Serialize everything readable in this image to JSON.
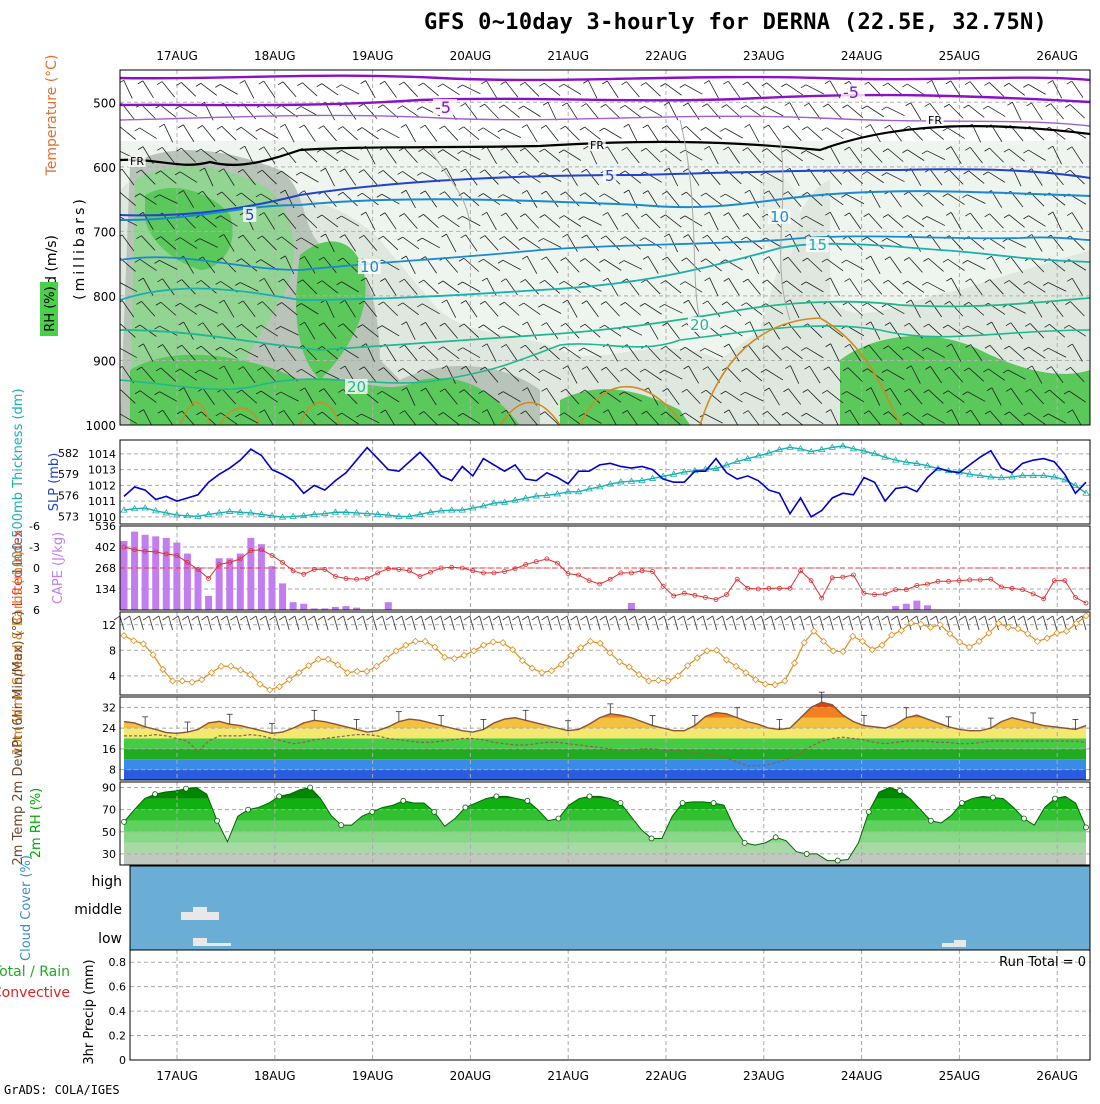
{
  "title": "GFS 0~10day 3-hourly for DERNA (22.5E, 32.75N)",
  "credit": "GrADS: COLA/IGES",
  "dates": [
    "17AUG",
    "18AUG",
    "19AUG",
    "20AUG",
    "21AUG",
    "22AUG",
    "23AUG",
    "24AUG",
    "25AUG",
    "26AUG"
  ],
  "chart_data": [
    {
      "type": "contour",
      "id": "upper",
      "labels": {
        "wind": "Wind (m/s)",
        "temp": "Temperature (°C)",
        "rh": "RH (%)",
        "units": "(millibars)"
      },
      "y_ticks": [
        500,
        600,
        700,
        800,
        900,
        1000
      ],
      "ylim": [
        450,
        1000
      ],
      "contour_labels": [
        "-5",
        "-5",
        "5",
        "5",
        "10",
        "10",
        "15",
        "20",
        "20",
        "FR",
        "FR",
        "FR"
      ]
    },
    {
      "type": "line",
      "id": "slp",
      "labels": {
        "left": "1000-500mb Thickness (dm)",
        "right": "SLP (mb)"
      },
      "thickness_ticks": [
        573,
        576,
        579,
        582
      ],
      "slp_ticks": [
        1010,
        1011,
        1012,
        1013,
        1014
      ],
      "series": [
        {
          "name": "SLP (mb)",
          "color": "#0000cc",
          "values": [
            1011.3,
            1011.9,
            1011.7,
            1011.1,
            1011.3,
            1011.0,
            1011.2,
            1011.4,
            1012.2,
            1012.7,
            1013.1,
            1013.6,
            1014.3,
            1013.9,
            1013.0,
            1012.7,
            1012.3,
            1011.5,
            1012.0,
            1011.7,
            1012.3,
            1012.8,
            1013.6,
            1014.4,
            1013.7,
            1013.0,
            1012.9,
            1013.5,
            1014.1,
            1013.4,
            1012.6,
            1012.3,
            1013.2,
            1012.6,
            1013.7,
            1013.3,
            1012.9,
            1013.3,
            1012.4,
            1012.3,
            1012.8,
            1012.5,
            1012.1,
            1012.9,
            1012.9,
            1013.3,
            1013.4,
            1013.2,
            1013.1,
            1013.2,
            1013.0,
            1012.4,
            1012.2,
            1012.2,
            1012.9,
            1012.9,
            1013.7,
            1012.8,
            1012.4,
            1012.6,
            1012.3,
            1011.7,
            1011.5,
            1010.2,
            1011.2,
            1010.0,
            1010.4,
            1011.2,
            1011.5,
            1011.4,
            1012.5,
            1012.2,
            1011.0,
            1011.8,
            1011.9,
            1011.6,
            1012.5,
            1013.1,
            1012.9,
            1012.8,
            1013.3,
            1013.8,
            1014.2,
            1013.1,
            1012.8,
            1013.4,
            1013.6,
            1013.7,
            1013.5,
            1012.7,
            1011.5,
            1012.2
          ]
        },
        {
          "name": "Thickness (dm)",
          "color": "#19b0b0",
          "values": [
            573.9,
            574.1,
            574.2,
            573.8,
            573.5,
            573.2,
            573.1,
            573.0,
            573.3,
            573.5,
            573.7,
            573.6,
            573.5,
            573.3,
            573.1,
            572.9,
            573.0,
            573.1,
            573.3,
            573.4,
            573.6,
            573.6,
            573.5,
            573.4,
            573.3,
            573.2,
            573.0,
            573.0,
            573.3,
            573.6,
            573.8,
            573.9,
            573.9,
            574.2,
            574.5,
            574.9,
            575.0,
            575.3,
            575.6,
            575.9,
            576.0,
            576.2,
            576.5,
            576.5,
            576.9,
            577.2,
            577.6,
            577.9,
            578.0,
            578.1,
            578.4,
            578.7,
            579.0,
            579.3,
            579.5,
            579.7,
            579.8,
            580.3,
            580.8,
            581.2,
            581.6,
            582.0,
            582.5,
            582.8,
            582.6,
            582.2,
            582.5,
            582.8,
            583.0,
            582.6,
            582.3,
            581.9,
            581.4,
            581.0,
            580.7,
            580.5,
            580.2,
            579.8,
            579.5,
            579.3,
            579.0,
            578.8,
            578.6,
            578.5,
            578.6,
            578.8,
            578.8,
            578.8,
            578.6,
            578.2,
            577.4,
            576.3
          ]
        }
      ]
    },
    {
      "type": "bar",
      "id": "cape",
      "labels": {
        "left": "Lifted Index",
        "right": "CAPE (J/kg)"
      },
      "li_ticks": [
        -6,
        -3,
        0,
        3,
        6
      ],
      "cape_ticks": [
        134,
        268,
        402,
        536
      ],
      "series": [
        {
          "name": "CAPE (J/kg)",
          "color": "#c27ef0",
          "values": [
            440,
            500,
            480,
            470,
            460,
            430,
            360,
            270,
            90,
            330,
            330,
            360,
            460,
            420,
            280,
            170,
            50,
            40,
            10,
            10,
            20,
            25,
            15,
            0,
            0,
            50,
            0,
            0,
            0,
            0,
            0,
            0,
            0,
            0,
            0,
            0,
            0,
            0,
            0,
            0,
            0,
            0,
            0,
            0,
            0,
            0,
            0,
            0,
            45,
            0,
            0,
            0,
            0,
            0,
            0,
            0,
            0,
            0,
            0,
            0,
            0,
            0,
            0,
            0,
            0,
            0,
            0,
            0,
            0,
            0,
            0,
            0,
            0,
            25,
            40,
            60,
            30,
            0,
            0,
            0,
            0,
            0,
            0,
            0,
            0,
            0,
            0,
            0,
            0,
            0,
            0,
            0
          ]
        },
        {
          "name": "Lifted Index",
          "color": "#dd3030",
          "values": [
            -3,
            -2.6,
            -2.4,
            -2.3,
            -2.0,
            -1.8,
            -0.8,
            0.2,
            1.5,
            -0.5,
            -0.8,
            -1.3,
            -2.5,
            -2.6,
            -1.8,
            -0.8,
            0.4,
            0.9,
            0.2,
            0.2,
            1.2,
            1.5,
            1.6,
            1.5,
            0.7,
            0.1,
            0.2,
            0.4,
            1.2,
            0.6,
            0.0,
            -0.1,
            0.0,
            0.4,
            0.7,
            0.7,
            0.5,
            0.1,
            -0.5,
            -0.9,
            -1.3,
            -0.7,
            0.8,
            1.0,
            1.8,
            2.3,
            1.6,
            0.7,
            0.7,
            0.4,
            0.5,
            2.6,
            4.0,
            3.6,
            3.9,
            4.2,
            4.5,
            3.8,
            1.6,
            2.9,
            3.0,
            2.9,
            2.9,
            2.9,
            0.4,
            1.8,
            4.3,
            1.4,
            1.3,
            1.0,
            3.6,
            3.8,
            3.7,
            3.1,
            3.1,
            2.5,
            2.3,
            1.9,
            1.9,
            1.8,
            1.7,
            1.7,
            1.6,
            2.7,
            2.9,
            3.1,
            3.7,
            4.4,
            1.8,
            1.8,
            4.2,
            5.0
          ]
        }
      ]
    },
    {
      "type": "line",
      "id": "wind10m",
      "labels": {
        "left": "10m Wind Speed & Barbs (m/s)"
      },
      "y_ticks": [
        4,
        8,
        12
      ],
      "series": [
        {
          "name": "10m Wind Speed",
          "color": "#e09020",
          "values": [
            10.3,
            9.5,
            9.0,
            7.3,
            5.0,
            3.2,
            3.2,
            3.0,
            3.4,
            4.5,
            5.5,
            5.5,
            4.9,
            4.2,
            2.7,
            1.8,
            2.3,
            3.4,
            4.5,
            5.6,
            6.6,
            6.6,
            5.7,
            4.5,
            4.7,
            4.7,
            5.5,
            6.7,
            7.9,
            8.8,
            9.4,
            9.4,
            8.5,
            6.9,
            6.7,
            7.2,
            7.9,
            8.8,
            9.3,
            9.2,
            8.1,
            6.4,
            5.2,
            4.5,
            4.8,
            5.8,
            7.2,
            8.4,
            9.4,
            9.1,
            7.6,
            6.2,
            5.4,
            4.2,
            3.2,
            3.3,
            3.2,
            4.0,
            5.6,
            6.8,
            7.9,
            8.0,
            6.5,
            5.5,
            4.5,
            3.4,
            2.7,
            2.6,
            3.2,
            6.0,
            9.2,
            11.0,
            9.4,
            7.9,
            7.8,
            10.2,
            9.4,
            8.1,
            8.8,
            10.4,
            11.1,
            12.3,
            12.1,
            11.6,
            12.0,
            10.6,
            9.3,
            8.5,
            9.4,
            10.7,
            12.2,
            11.6,
            11.4,
            10.6,
            9.4,
            9.9,
            10.7,
            11.0,
            12.2,
            13.4
          ]
        }
      ]
    },
    {
      "type": "area",
      "id": "temp2m",
      "labels": {
        "left": "2m Temp 2m DewPt (6hr Min/Max) (°C)"
      },
      "y_ticks": [
        8,
        16,
        24,
        32
      ],
      "series": [
        {
          "name": "2m Temp",
          "color": "#885533",
          "values": [
            26.5,
            26.0,
            24.5,
            23.5,
            22.3,
            22.0,
            22.5,
            23.5,
            26.0,
            26.6,
            25.5,
            25.0,
            24.0,
            23.0,
            22.0,
            22.5,
            24.0,
            26.0,
            27.0,
            26.5,
            25.5,
            24.5,
            23.5,
            22.5,
            23.0,
            24.5,
            26.5,
            27.5,
            27.0,
            26.0,
            25.0,
            24.0,
            23.0,
            22.5,
            23.5,
            26.0,
            27.5,
            28.0,
            27.0,
            26.0,
            25.0,
            24.0,
            23.0,
            23.5,
            25.5,
            28.0,
            29.5,
            29.0,
            28.0,
            26.5,
            25.0,
            24.0,
            23.0,
            23.0,
            25.0,
            28.5,
            30.0,
            29.5,
            28.0,
            26.5,
            25.5,
            24.0,
            23.5,
            24.0,
            28.0,
            32.0,
            34.0,
            33.0,
            29.0,
            26.5,
            25.0,
            24.5,
            24.0,
            25.5,
            28.0,
            29.0,
            27.5,
            26.0,
            24.5,
            23.5,
            23.0,
            23.0,
            24.0,
            26.5,
            28.0,
            27.0,
            26.0,
            25.0,
            24.5,
            24.0,
            23.5,
            25.0
          ]
        },
        {
          "name": "2m DewPt",
          "color": "#886644",
          "values": [
            21.0,
            21.0,
            21.0,
            21.5,
            21.0,
            20.0,
            19.0,
            15.0,
            19.0,
            21.0,
            21.0,
            21.0,
            21.5,
            21.0,
            20.0,
            19.0,
            18.0,
            18.5,
            19.5,
            20.0,
            20.5,
            21.0,
            21.5,
            21.5,
            21.0,
            20.0,
            19.5,
            19.0,
            18.5,
            18.5,
            19.0,
            19.5,
            20.0,
            20.0,
            19.5,
            18.5,
            18.0,
            17.5,
            17.5,
            18.0,
            18.5,
            18.5,
            18.0,
            17.5,
            17.0,
            16.5,
            16.0,
            15.5,
            15.5,
            16.0,
            16.0,
            15.5,
            15.5,
            15.0,
            14.5,
            14.0,
            13.5,
            12.5,
            11.0,
            9.5,
            9.5,
            10.0,
            11.0,
            12.5,
            14.5,
            17.0,
            19.0,
            20.0,
            20.5,
            20.0,
            19.5,
            18.5,
            18.0,
            18.5,
            19.0,
            19.0,
            19.0,
            18.5,
            18.5,
            18.0,
            18.0,
            18.5,
            19.0,
            19.0,
            19.0,
            19.0,
            19.0,
            19.0,
            19.0,
            19.0,
            19.0,
            18.5
          ]
        }
      ]
    },
    {
      "type": "area",
      "id": "rh2m",
      "labels": {
        "left": "2m RH (%)"
      },
      "y_ticks": [
        30,
        50,
        70,
        90
      ],
      "series": [
        {
          "name": "2m RH",
          "color": "#00aa00",
          "values": [
            59,
            70,
            80,
            84,
            86,
            87,
            89,
            90,
            84,
            60,
            41,
            64,
            70,
            72,
            76,
            82,
            84,
            88,
            90,
            80,
            65,
            56,
            56,
            64,
            68,
            72,
            74,
            78,
            76,
            76,
            68,
            55,
            62,
            72,
            76,
            80,
            82,
            82,
            80,
            78,
            70,
            60,
            62,
            74,
            80,
            82,
            82,
            80,
            76,
            64,
            52,
            44,
            44,
            64,
            76,
            77,
            77,
            76,
            74,
            54,
            40,
            38,
            40,
            45,
            42,
            32,
            30,
            30,
            24,
            24,
            25,
            40,
            68,
            86,
            90,
            87,
            80,
            70,
            60,
            58,
            65,
            76,
            80,
            82,
            81,
            80,
            72,
            62,
            56,
            72,
            80,
            82,
            76,
            54
          ]
        }
      ]
    },
    {
      "type": "heatmap",
      "id": "cloud",
      "labels": {
        "left": "Cloud Cover (%)"
      },
      "levels": [
        "high",
        "middle",
        "low"
      ]
    },
    {
      "type": "bar",
      "id": "precip",
      "labels": {
        "left": "3hr Precip (mm)",
        "legend_total": "Total / Rain",
        "legend_conv": "Convective",
        "run_total": "Run Total = 0"
      },
      "y_ticks": [
        0,
        0.2,
        0.4,
        0.6,
        0.8
      ],
      "values": []
    }
  ]
}
